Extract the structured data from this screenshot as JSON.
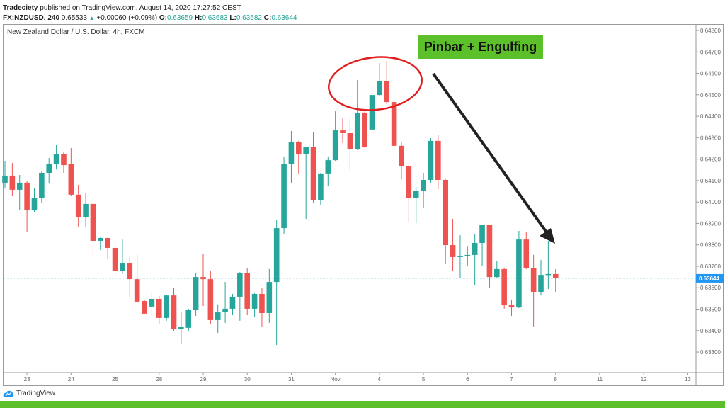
{
  "header": {
    "author": "Tradeciety",
    "published": "published on TradingView.com, August 14, 2020 17:27:52 CEST",
    "symbol": "FX:NZDUSD, 240",
    "last": "0.65533",
    "change": "+0.00060 (+0.09%)",
    "o_label": "O:",
    "o": "0.63659",
    "h_label": "H:",
    "h": "0.63683",
    "l_label": "L:",
    "l": "0.63582",
    "c_label": "C:",
    "c": "0.63644"
  },
  "chart_title": "New Zealand Dollar / U.S. Dollar, 4h, FXCM",
  "annotation": {
    "label": "Pinbar + Engulfing",
    "box_color": "#5cc02a",
    "ellipse_color": "#e02020",
    "arrow_color": "#222222"
  },
  "footer": {
    "logo_text": "TradingView",
    "bar_color": "#5cbf2a"
  },
  "colors": {
    "up": "#26a69a",
    "down": "#ef5350",
    "last_price": "#2196f3"
  },
  "chart_data": {
    "type": "candlestick",
    "price_axis": {
      "range": [
        0.6325,
        0.6485
      ],
      "ticks": [
        "0.64800",
        "0.64700",
        "0.64600",
        "0.64500",
        "0.64400",
        "0.64300",
        "0.64200",
        "0.64100",
        "0.64000",
        "0.63900",
        "0.63800",
        "0.63700",
        "0.63600",
        "0.63500",
        "0.63400",
        "0.63300"
      ],
      "last_price_label": "0.63644",
      "last_price": 0.63644
    },
    "date_axis": {
      "labels": [
        "23",
        "24",
        "25",
        "28",
        "29",
        "30",
        "31",
        "Nov",
        "4",
        "5",
        "6",
        "7",
        "8",
        "11",
        "12",
        "13"
      ]
    },
    "ohlc": [
      [
        0.6409,
        0.64192,
        0.64063,
        0.64123
      ],
      [
        0.64123,
        0.64182,
        0.64027,
        0.64057
      ],
      [
        0.64057,
        0.64126,
        0.63964,
        0.6409
      ],
      [
        0.6409,
        0.64096,
        0.63862,
        0.63964
      ],
      [
        0.63964,
        0.64063,
        0.63954,
        0.64017
      ],
      [
        0.64017,
        0.64143,
        0.63994,
        0.64136
      ],
      [
        0.64136,
        0.64205,
        0.64086,
        0.64176
      ],
      [
        0.64176,
        0.64268,
        0.64152,
        0.64225
      ],
      [
        0.64225,
        0.64232,
        0.64136,
        0.64172
      ],
      [
        0.64176,
        0.64252,
        0.64027,
        0.64034
      ],
      [
        0.64034,
        0.6408,
        0.63882,
        0.63928
      ],
      [
        0.63928,
        0.6404,
        0.63882,
        0.63991
      ],
      [
        0.63991,
        0.63994,
        0.63743,
        0.63819
      ],
      [
        0.63819,
        0.63835,
        0.63776,
        0.63832
      ],
      [
        0.63832,
        0.63835,
        0.63733,
        0.63786
      ],
      [
        0.63786,
        0.63819,
        0.6366,
        0.63677
      ],
      [
        0.63677,
        0.63825,
        0.63664,
        0.63713
      ],
      [
        0.63713,
        0.63743,
        0.63555,
        0.6364
      ],
      [
        0.6364,
        0.63753,
        0.63528,
        0.63535
      ],
      [
        0.63538,
        0.63545,
        0.63475,
        0.63479
      ],
      [
        0.63512,
        0.63578,
        0.63472,
        0.63548
      ],
      [
        0.63548,
        0.63561,
        0.63432,
        0.63459
      ],
      [
        0.63459,
        0.63568,
        0.63446,
        0.63564
      ],
      [
        0.63564,
        0.63601,
        0.63399,
        0.63409
      ],
      [
        0.63409,
        0.63485,
        0.6334,
        0.63416
      ],
      [
        0.63413,
        0.63502,
        0.63399,
        0.63498
      ],
      [
        0.63498,
        0.6367,
        0.63469,
        0.6365
      ],
      [
        0.6365,
        0.63756,
        0.63515,
        0.6364
      ],
      [
        0.6364,
        0.63677,
        0.63432,
        0.63449
      ],
      [
        0.63449,
        0.63522,
        0.63389,
        0.63485
      ],
      [
        0.63485,
        0.63627,
        0.63436,
        0.63502
      ],
      [
        0.63502,
        0.63571,
        0.63472,
        0.63558
      ],
      [
        0.63558,
        0.63673,
        0.63446,
        0.6367
      ],
      [
        0.6367,
        0.6369,
        0.63472,
        0.63502
      ],
      [
        0.63502,
        0.63574,
        0.63465,
        0.63571
      ],
      [
        0.63571,
        0.63597,
        0.63419,
        0.63482
      ],
      [
        0.63482,
        0.63687,
        0.63436,
        0.63627
      ],
      [
        0.63627,
        0.63918,
        0.63333,
        0.63878
      ],
      [
        0.63878,
        0.64212,
        0.63852,
        0.64176
      ],
      [
        0.64176,
        0.64331,
        0.6409,
        0.64281
      ],
      [
        0.64281,
        0.64285,
        0.64129,
        0.64222
      ],
      [
        0.64222,
        0.64258,
        0.63921,
        0.64255
      ],
      [
        0.64255,
        0.64324,
        0.63994,
        0.6401
      ],
      [
        0.6401,
        0.64136,
        0.63984,
        0.64133
      ],
      [
        0.64133,
        0.64209,
        0.64073,
        0.64195
      ],
      [
        0.64195,
        0.64423,
        0.64192,
        0.64334
      ],
      [
        0.64334,
        0.6439,
        0.64275,
        0.64321
      ],
      [
        0.64321,
        0.6439,
        0.64149,
        0.64245
      ],
      [
        0.64245,
        0.64569,
        0.64242,
        0.64417
      ],
      [
        0.64417,
        0.64423,
        0.64252,
        0.64255
      ],
      [
        0.64338,
        0.64532,
        0.64271,
        0.64499
      ],
      [
        0.64499,
        0.64648,
        0.64496,
        0.64565
      ],
      [
        0.64565,
        0.64658,
        0.64456,
        0.64466
      ],
      [
        0.64466,
        0.64473,
        0.64258,
        0.64262
      ],
      [
        0.64262,
        0.64281,
        0.64106,
        0.64169
      ],
      [
        0.64169,
        0.64172,
        0.63908,
        0.64017
      ],
      [
        0.64017,
        0.6407,
        0.63901,
        0.64053
      ],
      [
        0.64053,
        0.64136,
        0.63974,
        0.64103
      ],
      [
        0.64103,
        0.64298,
        0.6409,
        0.64285
      ],
      [
        0.64285,
        0.64314,
        0.6406,
        0.64103
      ],
      [
        0.64103,
        0.64106,
        0.6371,
        0.63799
      ],
      [
        0.63799,
        0.63921,
        0.63677,
        0.63743
      ],
      [
        0.63743,
        0.63845,
        0.63647,
        0.63749
      ],
      [
        0.63749,
        0.63792,
        0.63703,
        0.63753
      ],
      [
        0.63753,
        0.63852,
        0.63611,
        0.63809
      ],
      [
        0.63809,
        0.63895,
        0.63703,
        0.63892
      ],
      [
        0.63892,
        0.63895,
        0.63601,
        0.6365
      ],
      [
        0.6365,
        0.63726,
        0.63644,
        0.63687
      ],
      [
        0.63687,
        0.6369,
        0.63502,
        0.63518
      ],
      [
        0.63518,
        0.63545,
        0.63469,
        0.63508
      ],
      [
        0.63508,
        0.63865,
        0.63505,
        0.63825
      ],
      [
        0.63825,
        0.63862,
        0.63687,
        0.6369
      ],
      [
        0.6369,
        0.63753,
        0.63419,
        0.63581
      ],
      [
        0.63581,
        0.6373,
        0.63564,
        0.6366
      ],
      [
        0.6366,
        0.63819,
        0.63594,
        0.63664
      ],
      [
        0.63664,
        0.63687,
        0.63581,
        0.63644
      ]
    ]
  }
}
